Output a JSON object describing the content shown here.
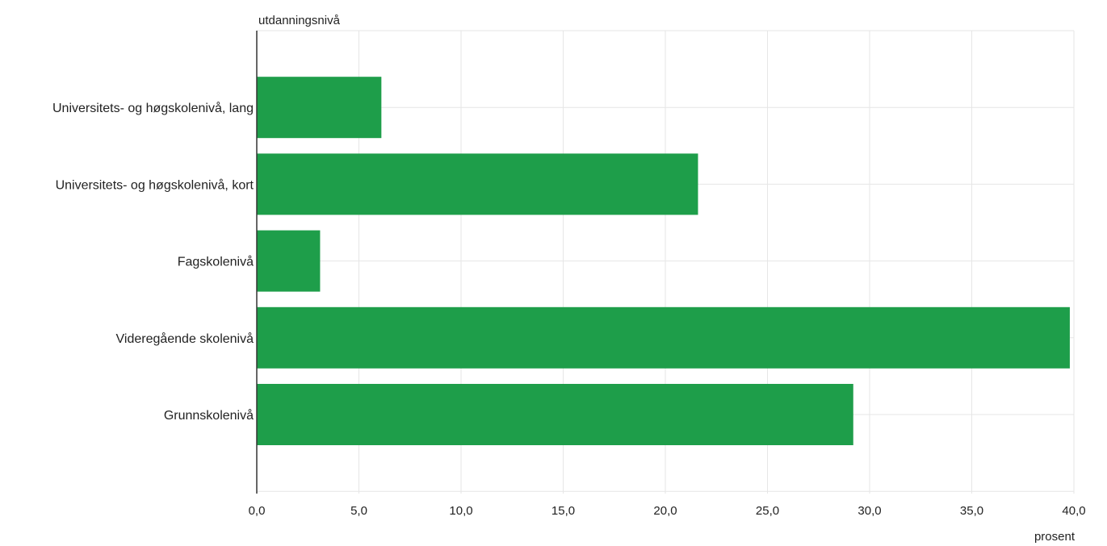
{
  "chart_data": {
    "type": "bar",
    "orientation": "horizontal",
    "title": "",
    "ylabel": "utdanningsnivå",
    "xlabel": "prosent",
    "categories": [
      "Universitets- og høgskolenivå, lang",
      "Universitets- og høgskolenivå, kort",
      "Fagskolenivå",
      "Videregående skolenivå",
      "Grunnskolenivå"
    ],
    "values": [
      6.1,
      21.6,
      3.1,
      39.8,
      29.2
    ],
    "xlim": [
      0,
      40
    ],
    "xticks": [
      "0,0",
      "5,0",
      "10,0",
      "15,0",
      "20,0",
      "25,0",
      "30,0",
      "35,0",
      "40,0"
    ],
    "grid": true,
    "legend": "none",
    "colors": {
      "bar": "#1e9e4a",
      "grid": "#e6e6e6",
      "axis": "#333333",
      "text": "#222222"
    }
  }
}
